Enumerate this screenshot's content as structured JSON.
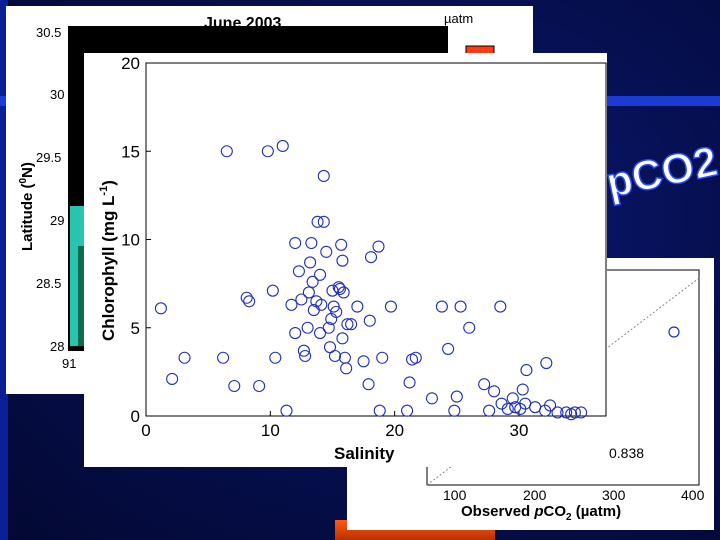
{
  "map_panel": {
    "title": "June 2003",
    "unit": "µatm",
    "ylabel": "Latitude (",
    "ylabel_sup": "0",
    "ylabel_end": "N)",
    "yticks": [
      "30.5",
      "30",
      "29.5",
      "29",
      "28.5",
      "28"
    ],
    "xtick": "91"
  },
  "slide_title": "pCO2",
  "validation_panel": {
    "xlabel_pre": "Observed ",
    "xlabel_italic": "p",
    "xlabel_co": "CO",
    "xlabel_sub": "2",
    "xlabel_post": " (µatm)",
    "xticks": [
      "100",
      "200",
      "300",
      "400"
    ],
    "r_value": "0.838"
  },
  "chart_data": {
    "type": "scatter",
    "xlabel": "Salinity",
    "ylabel_main": "Chlorophyll (mg L",
    "ylabel_sup": "-1",
    "ylabel_end": ")",
    "xlim": [
      0,
      37
    ],
    "ylim": [
      0,
      20
    ],
    "xticks": [
      0,
      10,
      20,
      30
    ],
    "yticks": [
      0,
      5,
      10,
      15,
      20
    ],
    "marker_color": "#1f2fc0",
    "points": [
      [
        1.2,
        6.1
      ],
      [
        2.1,
        2.1
      ],
      [
        3.1,
        3.3
      ],
      [
        6.2,
        3.3
      ],
      [
        6.5,
        15.0
      ],
      [
        7.1,
        1.7
      ],
      [
        8.1,
        6.7
      ],
      [
        8.3,
        6.5
      ],
      [
        9.1,
        1.7
      ],
      [
        9.8,
        15.0
      ],
      [
        10.2,
        7.1
      ],
      [
        10.4,
        3.3
      ],
      [
        11.0,
        15.3
      ],
      [
        11.3,
        0.3
      ],
      [
        11.7,
        6.3
      ],
      [
        12.0,
        9.8
      ],
      [
        12.0,
        4.7
      ],
      [
        12.3,
        8.2
      ],
      [
        12.5,
        6.6
      ],
      [
        12.7,
        3.7
      ],
      [
        12.8,
        3.4
      ],
      [
        13.0,
        5.0
      ],
      [
        13.1,
        7.0
      ],
      [
        13.2,
        8.7
      ],
      [
        13.3,
        9.8
      ],
      [
        13.4,
        7.6
      ],
      [
        13.5,
        6.0
      ],
      [
        13.7,
        6.5
      ],
      [
        13.8,
        11.0
      ],
      [
        14.0,
        8.0
      ],
      [
        14.0,
        4.7
      ],
      [
        14.1,
        6.3
      ],
      [
        14.3,
        11.0
      ],
      [
        14.3,
        13.6
      ],
      [
        14.5,
        9.3
      ],
      [
        14.7,
        5.0
      ],
      [
        14.8,
        3.9
      ],
      [
        14.9,
        5.5
      ],
      [
        15.0,
        7.1
      ],
      [
        15.1,
        6.2
      ],
      [
        15.2,
        3.4
      ],
      [
        15.3,
        5.9
      ],
      [
        15.5,
        7.3
      ],
      [
        15.6,
        7.2
      ],
      [
        15.7,
        9.7
      ],
      [
        15.8,
        8.8
      ],
      [
        15.8,
        4.4
      ],
      [
        15.9,
        7.0
      ],
      [
        16.0,
        3.3
      ],
      [
        16.1,
        2.7
      ],
      [
        16.2,
        5.2
      ],
      [
        16.5,
        5.2
      ],
      [
        17.0,
        6.2
      ],
      [
        17.5,
        3.1
      ],
      [
        17.9,
        1.8
      ],
      [
        18.0,
        5.4
      ],
      [
        18.1,
        9.0
      ],
      [
        18.7,
        9.6
      ],
      [
        18.8,
        0.3
      ],
      [
        19.0,
        3.3
      ],
      [
        19.7,
        6.2
      ],
      [
        21.0,
        0.3
      ],
      [
        21.2,
        1.9
      ],
      [
        21.4,
        3.2
      ],
      [
        21.7,
        3.3
      ],
      [
        23.0,
        1.0
      ],
      [
        23.8,
        6.2
      ],
      [
        24.3,
        3.8
      ],
      [
        24.8,
        0.3
      ],
      [
        25.0,
        1.1
      ],
      [
        25.3,
        6.2
      ],
      [
        26.0,
        5.0
      ],
      [
        27.2,
        1.8
      ],
      [
        27.6,
        0.3
      ],
      [
        28.0,
        1.4
      ],
      [
        28.5,
        6.2
      ],
      [
        28.6,
        0.7
      ],
      [
        29.1,
        0.4
      ],
      [
        29.5,
        1.0
      ],
      [
        29.7,
        0.5
      ],
      [
        30.1,
        0.4
      ],
      [
        30.3,
        1.5
      ],
      [
        30.5,
        0.7
      ],
      [
        30.6,
        2.6
      ],
      [
        31.3,
        0.5
      ],
      [
        32.1,
        0.3
      ],
      [
        32.2,
        3.0
      ],
      [
        32.5,
        0.6
      ],
      [
        33.1,
        0.2
      ],
      [
        33.8,
        0.2
      ],
      [
        34.2,
        0.1
      ],
      [
        34.5,
        0.2
      ],
      [
        35.0,
        0.2
      ]
    ]
  }
}
